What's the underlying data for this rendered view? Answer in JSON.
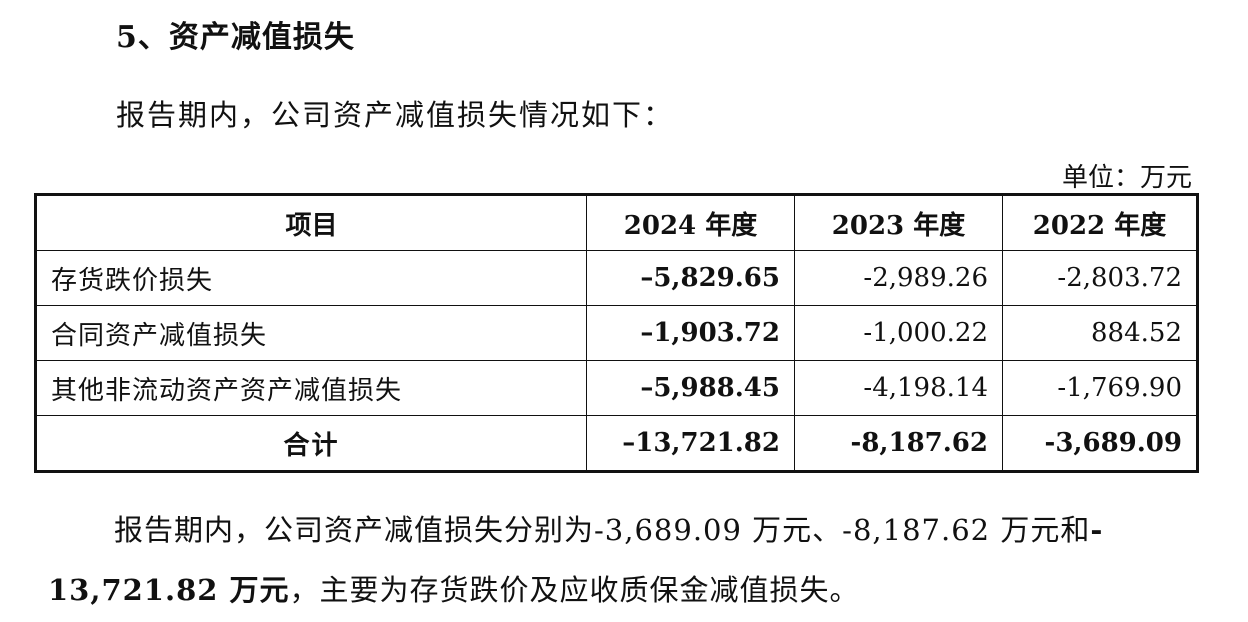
{
  "section": {
    "heading": "5、资产减值损失",
    "intro": "报告期内，公司资产减值损失情况如下：",
    "unit": "单位：万元"
  },
  "table": {
    "headers": [
      "项目",
      "2024 年度",
      "2023 年度",
      "2022 年度"
    ],
    "rows": [
      {
        "item": "存货跌价损失",
        "y2024": "–5,829.65",
        "y2023": "-2,989.26",
        "y2022": "-2,803.72"
      },
      {
        "item": "合同资产减值损失",
        "y2024": "–1,903.72",
        "y2023": "-1,000.22",
        "y2022": "884.52"
      },
      {
        "item": "其他非流动资产资产减值损失",
        "y2024": "–5,988.45",
        "y2023": "-4,198.14",
        "y2022": "-1,769.90"
      }
    ],
    "total": {
      "item": "合计",
      "y2024": "–13,721.82",
      "y2023": "-8,187.62",
      "y2022": "-3,689.09"
    }
  },
  "summary": {
    "line1_text": "报告期内，公司资产减值损失分别为-3,689.09 万元、-8,187.62 万元和",
    "line1_bold_tail": "-",
    "line2_bold_head": "13,721.82 万元",
    "line2_text": "，主要为存货跌价及应收质保金减值损失。"
  }
}
